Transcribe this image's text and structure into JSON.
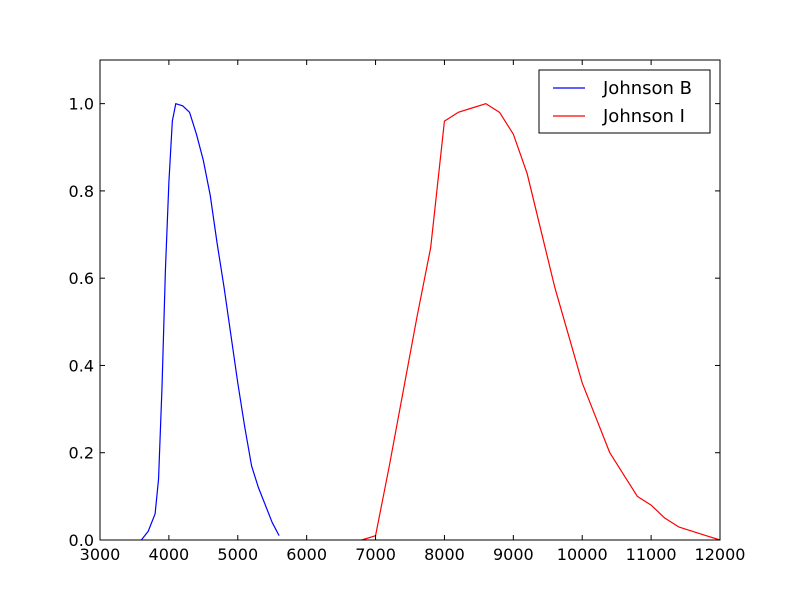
{
  "chart_data": {
    "type": "line",
    "title": "",
    "xlabel": "",
    "ylabel": "",
    "xlim": [
      3000,
      12000
    ],
    "ylim": [
      0.0,
      1.1
    ],
    "grid": false,
    "legend_position": "top-right",
    "x_ticks": [
      3000,
      4000,
      5000,
      6000,
      7000,
      8000,
      9000,
      10000,
      11000,
      12000
    ],
    "x_tick_labels": [
      "3000",
      "4000",
      "5000",
      "6000",
      "7000",
      "8000",
      "9000",
      "10000",
      "11000",
      "12000"
    ],
    "y_ticks": [
      0.0,
      0.2,
      0.4,
      0.6,
      0.8,
      1.0
    ],
    "y_tick_labels": [
      "0.0",
      "0.2",
      "0.4",
      "0.6",
      "0.8",
      "1.0"
    ],
    "series": [
      {
        "name": "Johnson B",
        "color": "#0000ff",
        "x": [
          3600,
          3700,
          3800,
          3850,
          3900,
          3950,
          4000,
          4050,
          4100,
          4200,
          4300,
          4400,
          4500,
          4600,
          4700,
          4800,
          4900,
          5000,
          5100,
          5200,
          5300,
          5400,
          5500,
          5600
        ],
        "y": [
          0.0,
          0.02,
          0.06,
          0.14,
          0.35,
          0.62,
          0.82,
          0.96,
          1.0,
          0.995,
          0.98,
          0.93,
          0.87,
          0.79,
          0.68,
          0.58,
          0.47,
          0.36,
          0.26,
          0.17,
          0.12,
          0.08,
          0.04,
          0.01
        ]
      },
      {
        "name": "Johnson I",
        "color": "#ff0000",
        "x": [
          6800,
          7000,
          7200,
          7400,
          7600,
          7800,
          8000,
          8200,
          8400,
          8600,
          8800,
          9000,
          9200,
          9400,
          9600,
          9800,
          10000,
          10200,
          10400,
          10600,
          10800,
          11000,
          11200,
          11400,
          11600,
          11800,
          12000
        ],
        "y": [
          0.0,
          0.01,
          0.17,
          0.34,
          0.51,
          0.67,
          0.96,
          0.98,
          0.99,
          1.0,
          0.98,
          0.93,
          0.84,
          0.71,
          0.58,
          0.47,
          0.36,
          0.28,
          0.2,
          0.15,
          0.1,
          0.08,
          0.05,
          0.03,
          0.02,
          0.01,
          0.0
        ]
      }
    ]
  }
}
